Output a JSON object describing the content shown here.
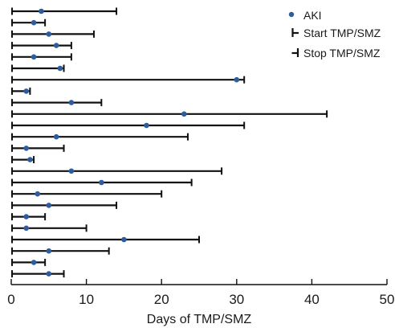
{
  "chart_data": {
    "type": "scatter",
    "title": "",
    "xlabel": "Days of TMP/SMZ",
    "ylabel": "",
    "xlim": [
      0,
      50
    ],
    "xticks": [
      "0",
      "10",
      "20",
      "30",
      "40",
      "50"
    ],
    "grid": false,
    "legend_position": "top-right",
    "legend": {
      "aki": "AKI",
      "start": "Start TMP/SMZ",
      "stop": "Stop TMP/SMZ"
    },
    "colors": {
      "aki_point": "#2f5c9e",
      "interval_line": "#111111",
      "axis": "#111111"
    },
    "patients": [
      {
        "start": 0,
        "stop": 14,
        "aki": 4
      },
      {
        "start": 0,
        "stop": 4.5,
        "aki": 3
      },
      {
        "start": 0,
        "stop": 11,
        "aki": 5
      },
      {
        "start": 0,
        "stop": 8,
        "aki": 6
      },
      {
        "start": 0,
        "stop": 8,
        "aki": 3
      },
      {
        "start": 0,
        "stop": 7,
        "aki": 6.5
      },
      {
        "start": 0,
        "stop": 31,
        "aki": 30
      },
      {
        "start": 0,
        "stop": 2.5,
        "aki": 2
      },
      {
        "start": 0,
        "stop": 12,
        "aki": 8
      },
      {
        "start": 0,
        "stop": 42,
        "aki": 23
      },
      {
        "start": 0,
        "stop": 31,
        "aki": 18
      },
      {
        "start": 0,
        "stop": 23.5,
        "aki": 6
      },
      {
        "start": 0,
        "stop": 7,
        "aki": 2
      },
      {
        "start": 0,
        "stop": 3,
        "aki": 2.5
      },
      {
        "start": 0,
        "stop": 28,
        "aki": 8
      },
      {
        "start": 0,
        "stop": 24,
        "aki": 12
      },
      {
        "start": 0,
        "stop": 20,
        "aki": 3.5
      },
      {
        "start": 0,
        "stop": 14,
        "aki": 5
      },
      {
        "start": 0,
        "stop": 4.5,
        "aki": 2
      },
      {
        "start": 0,
        "stop": 10,
        "aki": 2
      },
      {
        "start": 0,
        "stop": 25,
        "aki": 15
      },
      {
        "start": 0,
        "stop": 13,
        "aki": 5
      },
      {
        "start": 0,
        "stop": 4.5,
        "aki": 3
      },
      {
        "start": 0,
        "stop": 7,
        "aki": 5
      }
    ]
  }
}
